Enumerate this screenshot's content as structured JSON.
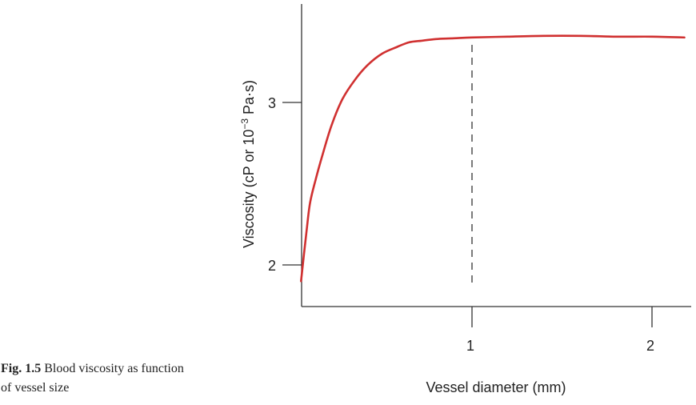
{
  "caption": {
    "label": "Fig. 1.5",
    "text": "Blood viscosity as function of vessel size"
  },
  "chart_data": {
    "type": "line",
    "title": "",
    "xlabel": "Vessel diameter (mm)",
    "ylabel_main": "Viscosity (cP or 10",
    "ylabel_exp": "−3",
    "ylabel_tail": " Pa·s)",
    "xlim": [
      0,
      2.2
    ],
    "ylim": [
      1.75,
      3.6
    ],
    "x_ticks": [
      {
        "value": 1,
        "label": "1"
      },
      {
        "value": 2,
        "label": "2"
      }
    ],
    "y_ticks": [
      {
        "value": 2,
        "label": "2"
      },
      {
        "value": 3,
        "label": "3"
      }
    ],
    "grid": false,
    "reference_line": {
      "x": 1,
      "style": "dashed"
    },
    "series": [
      {
        "color": "#d03030",
        "x": [
          0.05,
          0.08,
          0.1,
          0.13,
          0.17,
          0.22,
          0.28,
          0.35,
          0.42,
          0.5,
          0.58,
          0.65,
          0.72,
          0.8,
          0.9,
          1.0,
          1.2,
          1.4,
          1.6,
          1.8,
          2.0,
          2.18
        ],
        "y": [
          1.9,
          2.2,
          2.38,
          2.52,
          2.68,
          2.86,
          3.02,
          3.14,
          3.23,
          3.3,
          3.34,
          3.37,
          3.38,
          3.39,
          3.395,
          3.4,
          3.405,
          3.41,
          3.41,
          3.405,
          3.405,
          3.4
        ]
      }
    ]
  }
}
